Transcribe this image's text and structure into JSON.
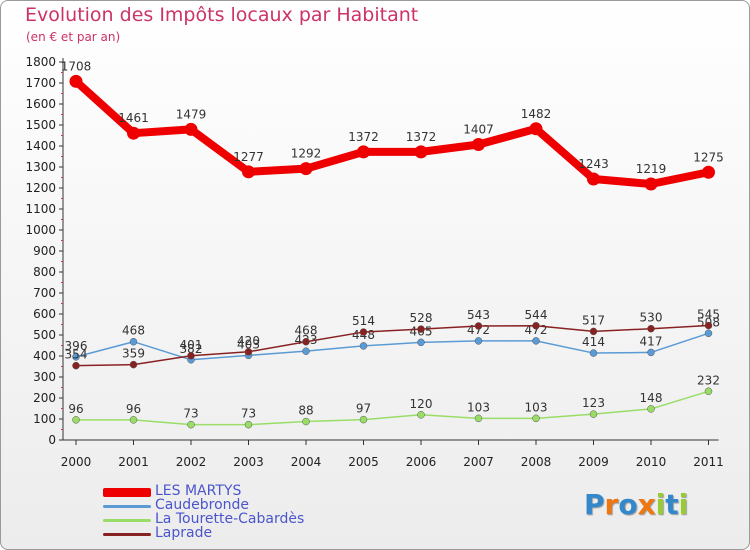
{
  "chart_data": {
    "type": "line",
    "title": "Evolution des Impôts locaux par Habitant",
    "subtitle": "(en € et par an)",
    "xlabel": "",
    "ylabel": "",
    "ylim": [
      0,
      1800
    ],
    "yticks": [
      0,
      100,
      200,
      300,
      400,
      500,
      600,
      700,
      800,
      900,
      1000,
      1100,
      1200,
      1300,
      1400,
      1500,
      1600,
      1700,
      1800
    ],
    "x": [
      "2000",
      "2001",
      "2002",
      "2003",
      "2004",
      "2005",
      "2006",
      "2007",
      "2008",
      "2009",
      "2010",
      "2011"
    ],
    "grid": false,
    "legend_position": "bottom-left",
    "series": [
      {
        "name": "LES MARTYS",
        "color": "#ee0000",
        "width": "thick",
        "values": [
          1708,
          1461,
          1479,
          1277,
          1292,
          1372,
          1372,
          1407,
          1482,
          1243,
          1219,
          1275
        ]
      },
      {
        "name": "Caudebronde",
        "color": "#5b9bd5",
        "width": "thin",
        "values": [
          396,
          468,
          382,
          403,
          423,
          448,
          465,
          472,
          472,
          414,
          417,
          508
        ]
      },
      {
        "name": "La Tourette-Cabardès",
        "color": "#99dd66",
        "width": "thin",
        "values": [
          96,
          96,
          73,
          73,
          88,
          97,
          120,
          103,
          103,
          123,
          148,
          232
        ]
      },
      {
        "name": "Laprade",
        "color": "#882222",
        "width": "thin",
        "values": [
          354,
          359,
          401,
          420,
          468,
          514,
          528,
          543,
          544,
          517,
          530,
          545
        ]
      }
    ]
  },
  "logo": {
    "letters": [
      {
        "char": "P",
        "color": "#3388cc"
      },
      {
        "char": "r",
        "color": "#ee7711"
      },
      {
        "char": "o",
        "color": "#3388cc"
      },
      {
        "char": "x",
        "color": "#ee7711"
      },
      {
        "char": "i",
        "color": "#99cc33"
      },
      {
        "char": "t",
        "color": "#3388cc"
      },
      {
        "char": "i",
        "color": "#99cc33"
      }
    ]
  }
}
